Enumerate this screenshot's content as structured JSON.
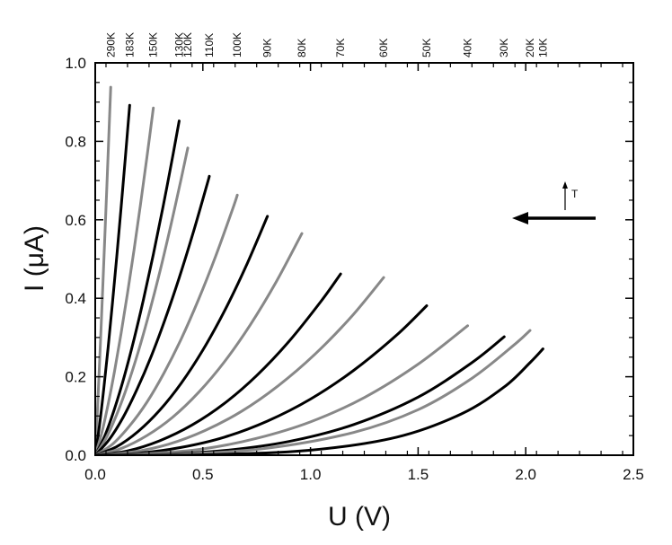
{
  "chart_data": {
    "type": "line",
    "xlabel": "U (V)",
    "ylabel": "I (μA)",
    "xlim": [
      0.0,
      2.5
    ],
    "ylim": [
      0.0,
      1.0
    ],
    "xticks": [
      "0.0",
      "0.5",
      "1.0",
      "1.5",
      "2.0",
      "2.5"
    ],
    "yticks": [
      "0.0",
      "0.2",
      "0.4",
      "0.6",
      "0.8",
      "1.0"
    ],
    "grid": false,
    "series": [
      {
        "name": "290K",
        "color": "#888888",
        "x": [
          0.0,
          0.009,
          0.018,
          0.027,
          0.036,
          0.045,
          0.054,
          0.063,
          0.072
        ],
        "y": [
          0.0,
          0.099,
          0.209,
          0.323,
          0.441,
          0.562,
          0.685,
          0.811,
          0.938
        ]
      },
      {
        "name": "183K",
        "color": "#000000",
        "x": [
          0.0,
          0.02,
          0.04,
          0.06,
          0.08,
          0.1,
          0.12,
          0.14,
          0.16
        ],
        "y": [
          0.0,
          0.077,
          0.171,
          0.275,
          0.388,
          0.506,
          0.63,
          0.759,
          0.892
        ]
      },
      {
        "name": "150K",
        "color": "#888888",
        "x": [
          0.0,
          0.03,
          0.06,
          0.09,
          0.12,
          0.15,
          0.18,
          0.21,
          0.24,
          0.27
        ],
        "y": [
          0.0,
          0.056,
          0.13,
          0.215,
          0.31,
          0.413,
          0.522,
          0.638,
          0.759,
          0.885
        ]
      },
      {
        "name": "130K",
        "color": "#000000",
        "x": [
          0.0,
          0.045,
          0.09,
          0.135,
          0.18,
          0.225,
          0.27,
          0.315,
          0.36,
          0.39
        ],
        "y": [
          0.0,
          0.05,
          0.119,
          0.201,
          0.295,
          0.399,
          0.512,
          0.633,
          0.762,
          0.852
        ]
      },
      {
        "name": "120K",
        "color": "#888888",
        "x": [
          0.0,
          0.05,
          0.1,
          0.15,
          0.2,
          0.25,
          0.3,
          0.35,
          0.4,
          0.43
        ],
        "y": [
          0.0,
          0.043,
          0.104,
          0.178,
          0.264,
          0.361,
          0.467,
          0.583,
          0.706,
          0.783
        ]
      },
      {
        "name": "110K",
        "color": "#000000",
        "x": [
          0.0,
          0.065,
          0.13,
          0.195,
          0.26,
          0.325,
          0.39,
          0.455,
          0.52,
          0.53
        ],
        "y": [
          0.0,
          0.04,
          0.097,
          0.169,
          0.252,
          0.347,
          0.452,
          0.567,
          0.691,
          0.711
        ]
      },
      {
        "name": "100K",
        "color": "#888888",
        "x": [
          0.0,
          0.08,
          0.16,
          0.24,
          0.32,
          0.4,
          0.48,
          0.56,
          0.64,
          0.66
        ],
        "y": [
          0.0,
          0.028,
          0.075,
          0.135,
          0.21,
          0.297,
          0.397,
          0.508,
          0.63,
          0.663
        ]
      },
      {
        "name": "90K",
        "color": "#000000",
        "x": [
          0.0,
          0.1,
          0.2,
          0.3,
          0.4,
          0.5,
          0.6,
          0.7,
          0.8
        ],
        "y": [
          0.0,
          0.022,
          0.061,
          0.115,
          0.184,
          0.268,
          0.367,
          0.481,
          0.609
        ]
      },
      {
        "name": "80K",
        "color": "#888888",
        "x": [
          0.0,
          0.12,
          0.24,
          0.36,
          0.48,
          0.6,
          0.72,
          0.84,
          0.96
        ],
        "y": [
          0.0,
          0.017,
          0.05,
          0.097,
          0.16,
          0.238,
          0.332,
          0.441,
          0.565
        ]
      },
      {
        "name": "70K",
        "color": "#000000",
        "x": [
          0.0,
          0.15,
          0.3,
          0.45,
          0.6,
          0.75,
          0.9,
          1.05,
          1.14
        ],
        "y": [
          0.0,
          0.011,
          0.037,
          0.077,
          0.132,
          0.203,
          0.29,
          0.393,
          0.462
        ]
      },
      {
        "name": "60K",
        "color": "#888888",
        "x": [
          0.0,
          0.17,
          0.34,
          0.51,
          0.68,
          0.85,
          1.02,
          1.19,
          1.34
        ],
        "y": [
          0.0,
          0.008,
          0.028,
          0.063,
          0.112,
          0.177,
          0.257,
          0.353,
          0.453
        ]
      },
      {
        "name": "50K",
        "color": "#000000",
        "x": [
          0.0,
          0.2,
          0.4,
          0.6,
          0.8,
          1.0,
          1.2,
          1.4,
          1.54
        ],
        "y": [
          0.0,
          0.005,
          0.02,
          0.046,
          0.087,
          0.143,
          0.216,
          0.306,
          0.381
        ]
      },
      {
        "name": "40K",
        "color": "#888888",
        "x": [
          0.0,
          0.25,
          0.5,
          0.75,
          1.0,
          1.25,
          1.5,
          1.73
        ],
        "y": [
          0.0,
          0.004,
          0.016,
          0.043,
          0.085,
          0.147,
          0.232,
          0.33
        ]
      },
      {
        "name": "30K",
        "color": "#000000",
        "x": [
          0.0,
          0.3,
          0.6,
          0.9,
          1.2,
          1.5,
          1.75,
          1.9
        ],
        "y": [
          0.0,
          0.002,
          0.012,
          0.035,
          0.078,
          0.148,
          0.236,
          0.302
        ]
      },
      {
        "name": "20K",
        "color": "#888888",
        "x": [
          0.0,
          0.4,
          0.8,
          1.2,
          1.5,
          1.75,
          1.95,
          2.02
        ],
        "y": [
          0.0,
          0.003,
          0.018,
          0.058,
          0.116,
          0.196,
          0.283,
          0.318
        ]
      },
      {
        "name": "10K",
        "color": "#000000",
        "x": [
          0.0,
          0.5,
          1.0,
          1.4,
          1.7,
          1.9,
          2.02,
          2.08
        ],
        "y": [
          0.0,
          0.001,
          0.013,
          0.046,
          0.105,
          0.174,
          0.236,
          0.271
        ]
      }
    ],
    "annotations": {
      "arrow_label": "T"
    }
  }
}
